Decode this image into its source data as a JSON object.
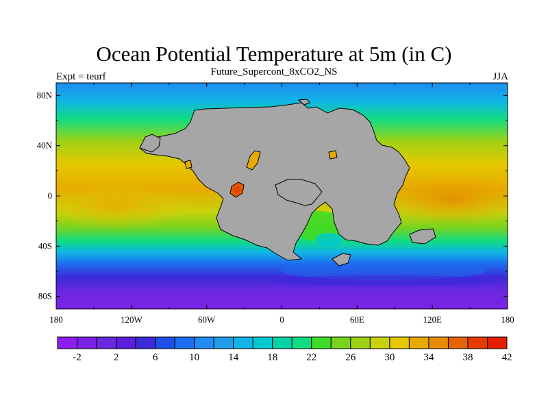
{
  "title": "Ocean Potential Temperature at 5m (in C)",
  "subtitle": "Future_Supercont_8xCO2_NS",
  "left_label": "Expt = teurf",
  "right_label": "JJA",
  "map": {
    "lat_labels": [
      {
        "lat": 80,
        "text": "80N"
      },
      {
        "lat": 40,
        "text": "40N"
      },
      {
        "lat": 0,
        "text": "0"
      },
      {
        "lat": -40,
        "text": "40S"
      },
      {
        "lat": -80,
        "text": "80S"
      }
    ],
    "lon_labels": [
      {
        "lon": -180,
        "text": "180"
      },
      {
        "lon": -120,
        "text": "120W"
      },
      {
        "lon": -60,
        "text": "60W"
      },
      {
        "lon": 0,
        "text": "0"
      },
      {
        "lon": 60,
        "text": "60E"
      },
      {
        "lon": 120,
        "text": "120E"
      },
      {
        "lon": 180,
        "text": "180"
      }
    ],
    "land_color": "#a6a6a6"
  },
  "colorbar": {
    "colors": [
      "#8c1ef0",
      "#7a22e6",
      "#6a28e0",
      "#5a1edc",
      "#3c2ad8",
      "#1e50e6",
      "#1e6ef0",
      "#1e8cf0",
      "#1e9ee6",
      "#10b4e6",
      "#00c8d2",
      "#00d2a8",
      "#10dc82",
      "#3cdc28",
      "#78d21e",
      "#a0d214",
      "#c8d20a",
      "#e6c800",
      "#e6aa00",
      "#e68c00",
      "#e66400",
      "#e63c00",
      "#e61e00"
    ],
    "labels": [
      "-2",
      "2",
      "6",
      "10",
      "14",
      "18",
      "22",
      "26",
      "30",
      "34",
      "38",
      "42"
    ]
  }
}
